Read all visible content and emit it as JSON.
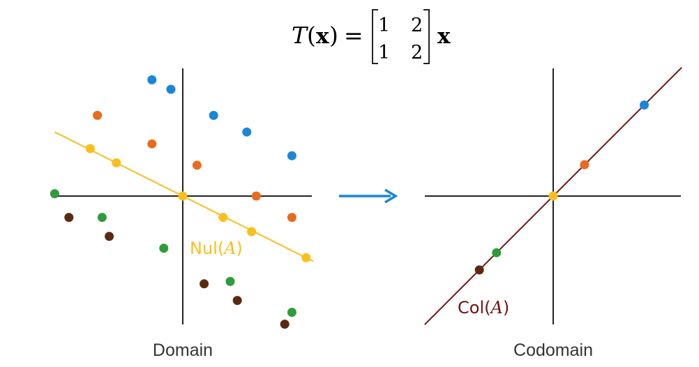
{
  "formula": {
    "lhs_T": "T",
    "lhs_open": "(",
    "lhs_x": "x",
    "lhs_close": ")",
    "equals": "=",
    "matrix": [
      [
        "1",
        "2"
      ],
      [
        "1",
        "2"
      ]
    ],
    "rhs_x": "x"
  },
  "panels": {
    "domain_label": "Domain",
    "codomain_label": "Codomain"
  },
  "nul_label": {
    "prefix": "Nul(",
    "var": "A",
    "suffix": ")"
  },
  "col_label": {
    "prefix": "Col(",
    "var": "A",
    "suffix": ")"
  },
  "colors": {
    "blue": "#1a86d8",
    "orange": "#ea6a1e",
    "yellow": "#f9bf1d",
    "green": "#2f9b3a",
    "brown": "#5a2a10",
    "axis": "#222222",
    "col_line": "#6b1515",
    "arrow": "#1a86d8"
  },
  "domain_points": [
    {
      "color": "blue",
      "x": -1.3,
      "y": 4.9
    },
    {
      "color": "blue",
      "x": -0.5,
      "y": 4.5
    },
    {
      "color": "blue",
      "x": 1.3,
      "y": 3.4
    },
    {
      "color": "blue",
      "x": 2.7,
      "y": 2.7
    },
    {
      "color": "blue",
      "x": 4.6,
      "y": 1.7
    },
    {
      "color": "orange",
      "x": -3.6,
      "y": 3.4
    },
    {
      "color": "orange",
      "x": -1.3,
      "y": 2.2
    },
    {
      "color": "orange",
      "x": 0.6,
      "y": 1.3
    },
    {
      "color": "orange",
      "x": 3.1,
      "y": 0.0
    },
    {
      "color": "orange",
      "x": 4.6,
      "y": -0.9
    },
    {
      "color": "yellow",
      "x": -3.9,
      "y": 2.0
    },
    {
      "color": "yellow",
      "x": -2.8,
      "y": 1.4
    },
    {
      "color": "yellow",
      "x": 0.0,
      "y": 0.0
    },
    {
      "color": "yellow",
      "x": 1.7,
      "y": -0.9
    },
    {
      "color": "yellow",
      "x": 2.9,
      "y": -1.5
    },
    {
      "color": "yellow",
      "x": 5.2,
      "y": -2.6
    },
    {
      "color": "green",
      "x": -5.4,
      "y": 0.1
    },
    {
      "color": "green",
      "x": -3.4,
      "y": -0.9
    },
    {
      "color": "green",
      "x": -0.8,
      "y": -2.2
    },
    {
      "color": "green",
      "x": 2.0,
      "y": -3.6
    },
    {
      "color": "green",
      "x": 4.6,
      "y": -4.9
    },
    {
      "color": "brown",
      "x": -4.8,
      "y": -0.9
    },
    {
      "color": "brown",
      "x": -3.1,
      "y": -1.7
    },
    {
      "color": "brown",
      "x": 0.9,
      "y": -3.7
    },
    {
      "color": "brown",
      "x": 2.3,
      "y": -4.4
    },
    {
      "color": "brown",
      "x": 4.3,
      "y": -5.4
    }
  ],
  "codomain_points": [
    {
      "color": "blue",
      "x": 9.0,
      "y": 9.0
    },
    {
      "color": "orange",
      "x": 3.1,
      "y": 3.1
    },
    {
      "color": "yellow",
      "x": 0.0,
      "y": 0.0
    },
    {
      "color": "green",
      "x": -5.6,
      "y": -5.6
    },
    {
      "color": "brown",
      "x": -7.3,
      "y": -7.3
    }
  ],
  "nul_line": {
    "slope": -0.5
  },
  "col_line": {
    "slope": 1
  }
}
